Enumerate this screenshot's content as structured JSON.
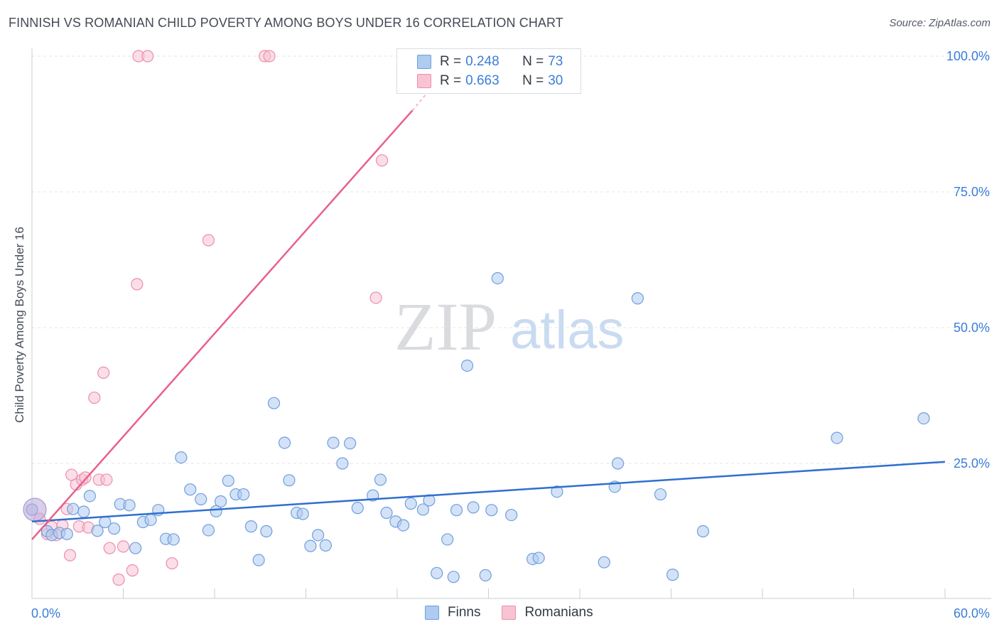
{
  "header": {
    "title": "FINNISH VS ROMANIAN CHILD POVERTY AMONG BOYS UNDER 16 CORRELATION CHART",
    "source": "Source: ZipAtlas.com"
  },
  "watermark": {
    "zip": "ZIP",
    "atlas": "atlas"
  },
  "legend": {
    "rows": [
      {
        "r_label": "R = ",
        "r_value": "0.248",
        "n_label": "N = ",
        "n_value": "73"
      },
      {
        "r_label": "R = ",
        "r_value": "0.663",
        "n_label": "N = ",
        "n_value": "30"
      }
    ]
  },
  "bottom_legend": {
    "finns": "Finns",
    "romanians": "Romanians"
  },
  "colors": {
    "finns_fill": "#aecbf0",
    "finns_stroke": "#6f9fdc",
    "finns_line": "#2f6fd0",
    "romanians_fill": "#f8c3d3",
    "romanians_stroke": "#eb8fab",
    "romanians_line": "#e8608c",
    "grid": "#e3e6ea",
    "axis_text": "#3b7dd8"
  },
  "chart_data": {
    "type": "scatter",
    "title": "FINNISH VS ROMANIAN CHILD POVERTY AMONG BOYS UNDER 16 CORRELATION CHART",
    "xlabel": "",
    "ylabel": "Child Poverty Among Boys Under 16",
    "xlim": [
      0,
      60
    ],
    "ylim": [
      0,
      100
    ],
    "x_tick_labels": [
      "0.0%",
      "60.0%"
    ],
    "y_tick_labels": [
      "100.0%",
      "75.0%",
      "50.0%",
      "25.0%"
    ],
    "y_ticks": [
      100,
      75,
      50,
      25
    ],
    "grid": true,
    "legend_position": "top-center",
    "series": [
      {
        "name": "Finns",
        "r": 0.248,
        "n": 73,
        "trend": {
          "x": [
            0,
            60
          ],
          "y": [
            14.3,
            25.3
          ]
        },
        "points": [
          [
            0.0,
            16.5
          ],
          [
            1.0,
            12.5
          ],
          [
            1.3,
            11.8
          ],
          [
            1.8,
            12.2
          ],
          [
            2.3,
            12.0
          ],
          [
            2.7,
            16.6
          ],
          [
            3.4,
            16.1
          ],
          [
            3.8,
            19.0
          ],
          [
            4.3,
            12.6
          ],
          [
            4.8,
            14.2
          ],
          [
            5.4,
            13.0
          ],
          [
            5.8,
            17.5
          ],
          [
            6.4,
            17.3
          ],
          [
            6.8,
            9.4
          ],
          [
            7.3,
            14.2
          ],
          [
            7.8,
            14.6
          ],
          [
            8.3,
            16.4
          ],
          [
            8.8,
            11.1
          ],
          [
            9.3,
            11.0
          ],
          [
            9.8,
            26.1
          ],
          [
            10.4,
            20.2
          ],
          [
            11.1,
            18.4
          ],
          [
            11.6,
            12.7
          ],
          [
            12.1,
            16.2
          ],
          [
            12.4,
            18.0
          ],
          [
            12.9,
            21.8
          ],
          [
            13.4,
            19.3
          ],
          [
            13.9,
            19.3
          ],
          [
            14.4,
            13.4
          ],
          [
            14.9,
            7.2
          ],
          [
            15.4,
            12.5
          ],
          [
            15.9,
            36.1
          ],
          [
            16.6,
            28.8
          ],
          [
            16.9,
            21.9
          ],
          [
            17.4,
            15.9
          ],
          [
            17.8,
            15.7
          ],
          [
            18.3,
            9.8
          ],
          [
            18.8,
            11.8
          ],
          [
            19.3,
            9.9
          ],
          [
            19.8,
            28.8
          ],
          [
            20.4,
            25.0
          ],
          [
            20.9,
            28.7
          ],
          [
            21.4,
            16.8
          ],
          [
            22.4,
            19.1
          ],
          [
            22.9,
            22.0
          ],
          [
            23.3,
            15.9
          ],
          [
            23.9,
            14.3
          ],
          [
            24.4,
            13.6
          ],
          [
            24.9,
            17.6
          ],
          [
            25.7,
            16.5
          ],
          [
            26.1,
            18.2
          ],
          [
            26.6,
            4.8
          ],
          [
            27.3,
            11.0
          ],
          [
            27.7,
            4.1
          ],
          [
            27.9,
            16.4
          ],
          [
            28.6,
            43.0
          ],
          [
            29.0,
            16.9
          ],
          [
            29.8,
            4.4
          ],
          [
            30.2,
            16.4
          ],
          [
            30.6,
            59.1
          ],
          [
            31.5,
            15.5
          ],
          [
            32.9,
            7.4
          ],
          [
            33.3,
            7.6
          ],
          [
            34.5,
            19.8
          ],
          [
            37.6,
            6.8
          ],
          [
            38.5,
            25.0
          ],
          [
            38.3,
            20.7
          ],
          [
            39.8,
            55.4
          ],
          [
            41.3,
            19.3
          ],
          [
            42.1,
            4.5
          ],
          [
            44.1,
            12.5
          ],
          [
            52.9,
            29.7
          ],
          [
            58.6,
            33.3
          ]
        ]
      },
      {
        "name": "Romanians",
        "r": 0.663,
        "n": 30,
        "trend": {
          "x": [
            0,
            25
          ],
          "y": [
            11.0,
            90.0
          ],
          "dashed_to": {
            "x": 26.2,
            "y": 94.0
          }
        },
        "points": [
          [
            0.5,
            14.8
          ],
          [
            1.0,
            12.0
          ],
          [
            1.3,
            13.3
          ],
          [
            1.6,
            11.8
          ],
          [
            2.0,
            13.6
          ],
          [
            2.3,
            16.6
          ],
          [
            2.5,
            8.1
          ],
          [
            2.6,
            22.9
          ],
          [
            2.9,
            21.1
          ],
          [
            3.1,
            13.4
          ],
          [
            3.3,
            22.0
          ],
          [
            3.5,
            22.4
          ],
          [
            3.7,
            13.2
          ],
          [
            4.1,
            37.1
          ],
          [
            4.4,
            22.0
          ],
          [
            4.7,
            41.7
          ],
          [
            4.9,
            22.0
          ],
          [
            5.1,
            9.4
          ],
          [
            5.7,
            3.6
          ],
          [
            6.0,
            9.7
          ],
          [
            6.6,
            5.3
          ],
          [
            6.9,
            58.0
          ],
          [
            7.0,
            100.0
          ],
          [
            7.6,
            100.0
          ],
          [
            9.2,
            6.6
          ],
          [
            11.6,
            66.1
          ],
          [
            15.3,
            100.0
          ],
          [
            15.6,
            100.0
          ],
          [
            22.6,
            55.5
          ],
          [
            23.0,
            80.8
          ]
        ]
      }
    ]
  }
}
